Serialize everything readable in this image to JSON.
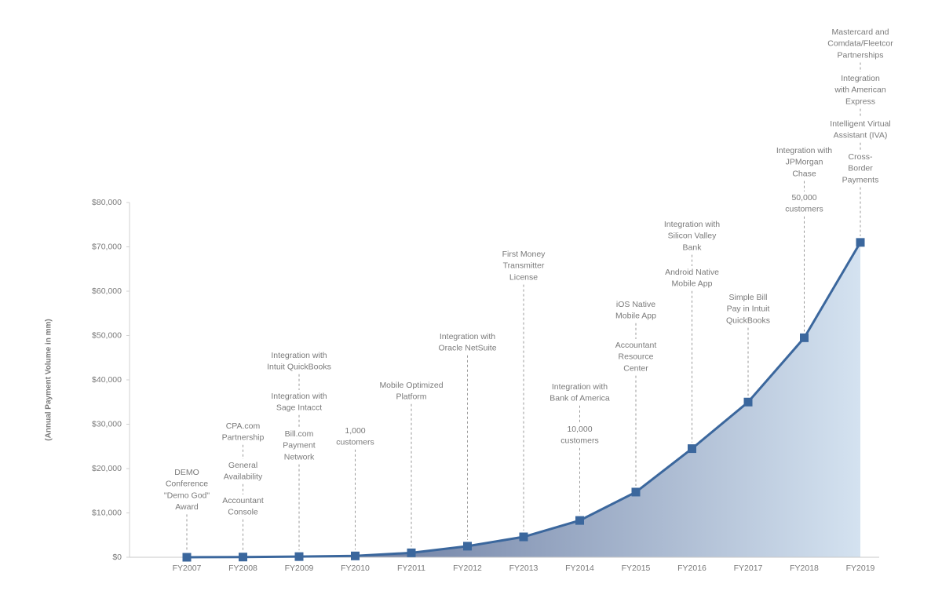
{
  "chart_data": {
    "type": "area-line",
    "y_label": "(Annual Payment Volume in mm)",
    "categories": [
      "FY2007",
      "FY2008",
      "FY2009",
      "FY2010",
      "FY2011",
      "FY2012",
      "FY2013",
      "FY2014",
      "FY2015",
      "FY2016",
      "FY2017",
      "FY2018",
      "FY2019"
    ],
    "values": [
      0,
      50,
      150,
      300,
      1000,
      2500,
      4600,
      8300,
      14700,
      24500,
      35000,
      49500,
      71000
    ],
    "color": "#3b679d",
    "fill_gradient": [
      "#4a5c88",
      "#d4e2f0"
    ],
    "ylim": [
      0,
      80000
    ],
    "yticks": [
      {
        "value": 0,
        "label": "$0"
      },
      {
        "value": 10000,
        "label": "$10,000"
      },
      {
        "value": 20000,
        "label": "$20,000"
      },
      {
        "value": 30000,
        "label": "$30,000"
      },
      {
        "value": 40000,
        "label": "$40,000"
      },
      {
        "value": 50000,
        "label": "$50,000"
      },
      {
        "value": 60000,
        "label": "$60,000"
      },
      {
        "value": 70000,
        "label": "$70,000"
      },
      {
        "value": 80000,
        "label": "$80,000"
      }
    ],
    "annotations": [
      [
        [
          "DEMO",
          "Conference",
          "\"Demo God\"",
          "Award"
        ]
      ],
      [
        [
          "CPA.com",
          "Partnership"
        ],
        [
          "General",
          "Availability"
        ],
        [
          "Accountant",
          "Console"
        ]
      ],
      [
        [
          "Integration with",
          "Intuit QuickBooks"
        ],
        [
          "Integration with",
          "Sage Intacct"
        ],
        [
          "Bill.com",
          "Payment",
          "Network"
        ]
      ],
      [
        [
          "1,000",
          "customers"
        ]
      ],
      [
        [
          "Mobile Optimized",
          "Platform"
        ]
      ],
      [
        [
          "Integration with",
          "Oracle NetSuite"
        ]
      ],
      [
        [
          "First Money",
          "Transmitter",
          "License"
        ]
      ],
      [
        [
          "Integration with",
          "Bank of America"
        ],
        [
          "10,000",
          "customers"
        ]
      ],
      [
        [
          "iOS Native",
          "Mobile App"
        ],
        [
          "Accountant",
          "Resource",
          "Center"
        ]
      ],
      [
        [
          "Integration with",
          "Silicon Valley",
          "Bank"
        ],
        [
          "Android Native",
          "Mobile App"
        ]
      ],
      [
        [
          "Simple Bill",
          "Pay in Intuit",
          "QuickBooks"
        ]
      ],
      [
        [
          "Integration with",
          "JPMorgan",
          "Chase"
        ],
        [
          "50,000",
          "customers"
        ]
      ],
      [
        [
          "Mastercard and",
          "Comdata/Fleetcor",
          "Partnerships"
        ],
        [
          "Integration",
          "with American",
          "Express"
        ],
        [
          "Intelligent Virtual",
          "Assistant (IVA)"
        ],
        [
          "Cross-",
          "Border",
          "Payments"
        ]
      ]
    ]
  }
}
